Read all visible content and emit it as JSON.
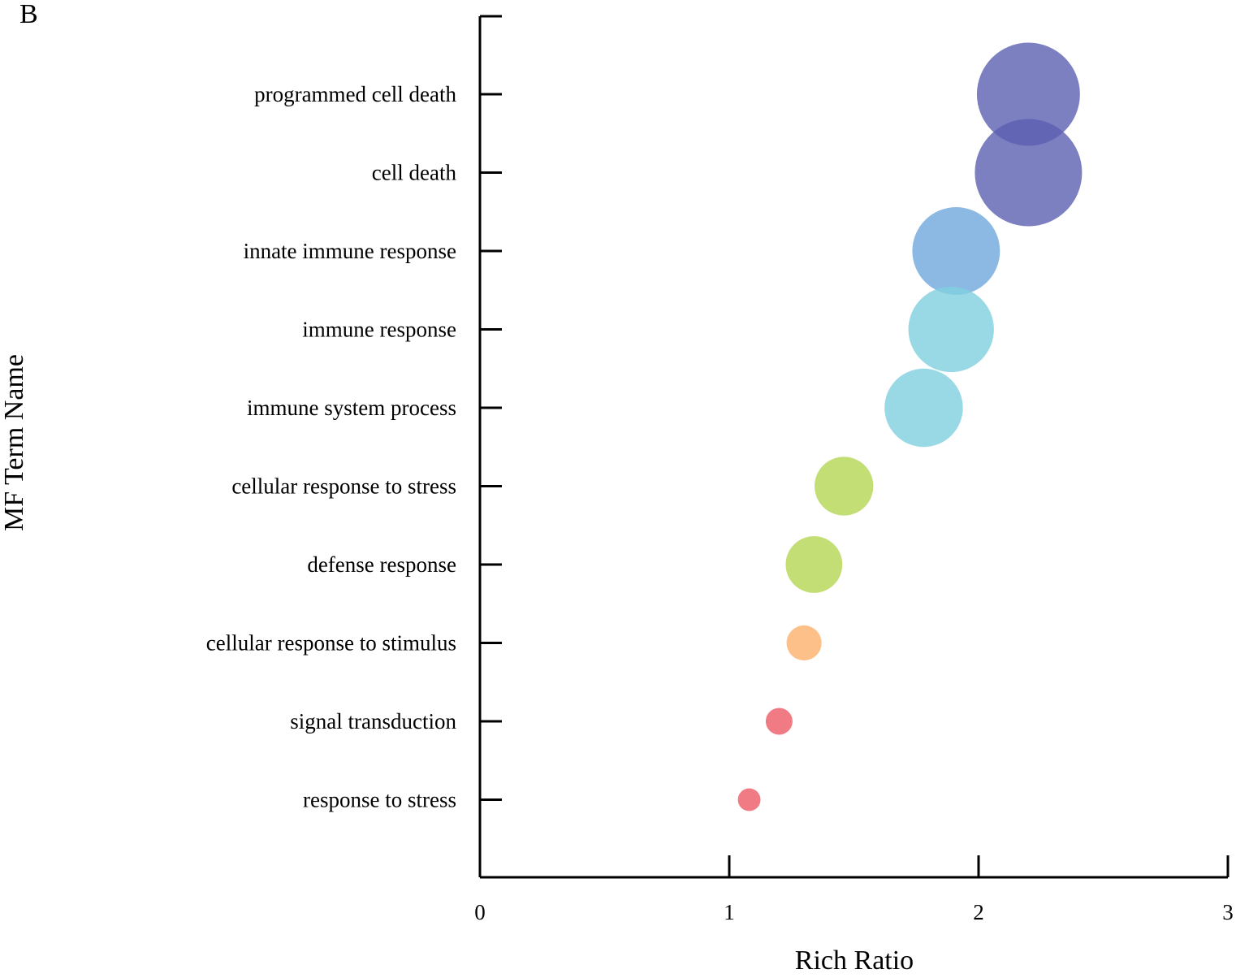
{
  "panel_label": "B",
  "chart_data": {
    "type": "scatter",
    "title": "",
    "xlabel": "Rich Ratio",
    "ylabel": "MF Term Name",
    "xlim": [
      0,
      3
    ],
    "xticks": [
      0,
      1,
      2,
      3
    ],
    "grid": false,
    "legend": "none",
    "categories": [
      "programmed cell death",
      "cell death",
      "innate immune response",
      "immune response",
      "immune system process",
      "cellular response to stress",
      "defense response",
      "cellular response to stimulus",
      "signal transduction",
      "response to stress"
    ],
    "points": [
      {
        "term": "programmed cell death",
        "x": 2.2,
        "size": 1.0,
        "color": "#5b5fb0"
      },
      {
        "term": "cell death",
        "x": 2.2,
        "size": 1.04,
        "color": "#5b5fb0"
      },
      {
        "term": "innate immune response",
        "x": 1.91,
        "size": 0.85,
        "color": "#6fa8dc"
      },
      {
        "term": "immune response",
        "x": 1.89,
        "size": 0.83,
        "color": "#7fd0df"
      },
      {
        "term": "immune system process",
        "x": 1.78,
        "size": 0.76,
        "color": "#7fd0df"
      },
      {
        "term": "cellular response to stress",
        "x": 1.46,
        "size": 0.57,
        "color": "#b4d653"
      },
      {
        "term": "defense response",
        "x": 1.34,
        "size": 0.55,
        "color": "#b4d653"
      },
      {
        "term": "cellular response to stimulus",
        "x": 1.3,
        "size": 0.34,
        "color": "#fdb06a"
      },
      {
        "term": "signal transduction",
        "x": 1.2,
        "size": 0.26,
        "color": "#ee5a66"
      },
      {
        "term": "response to stress",
        "x": 1.08,
        "size": 0.22,
        "color": "#ee5a66"
      }
    ]
  }
}
